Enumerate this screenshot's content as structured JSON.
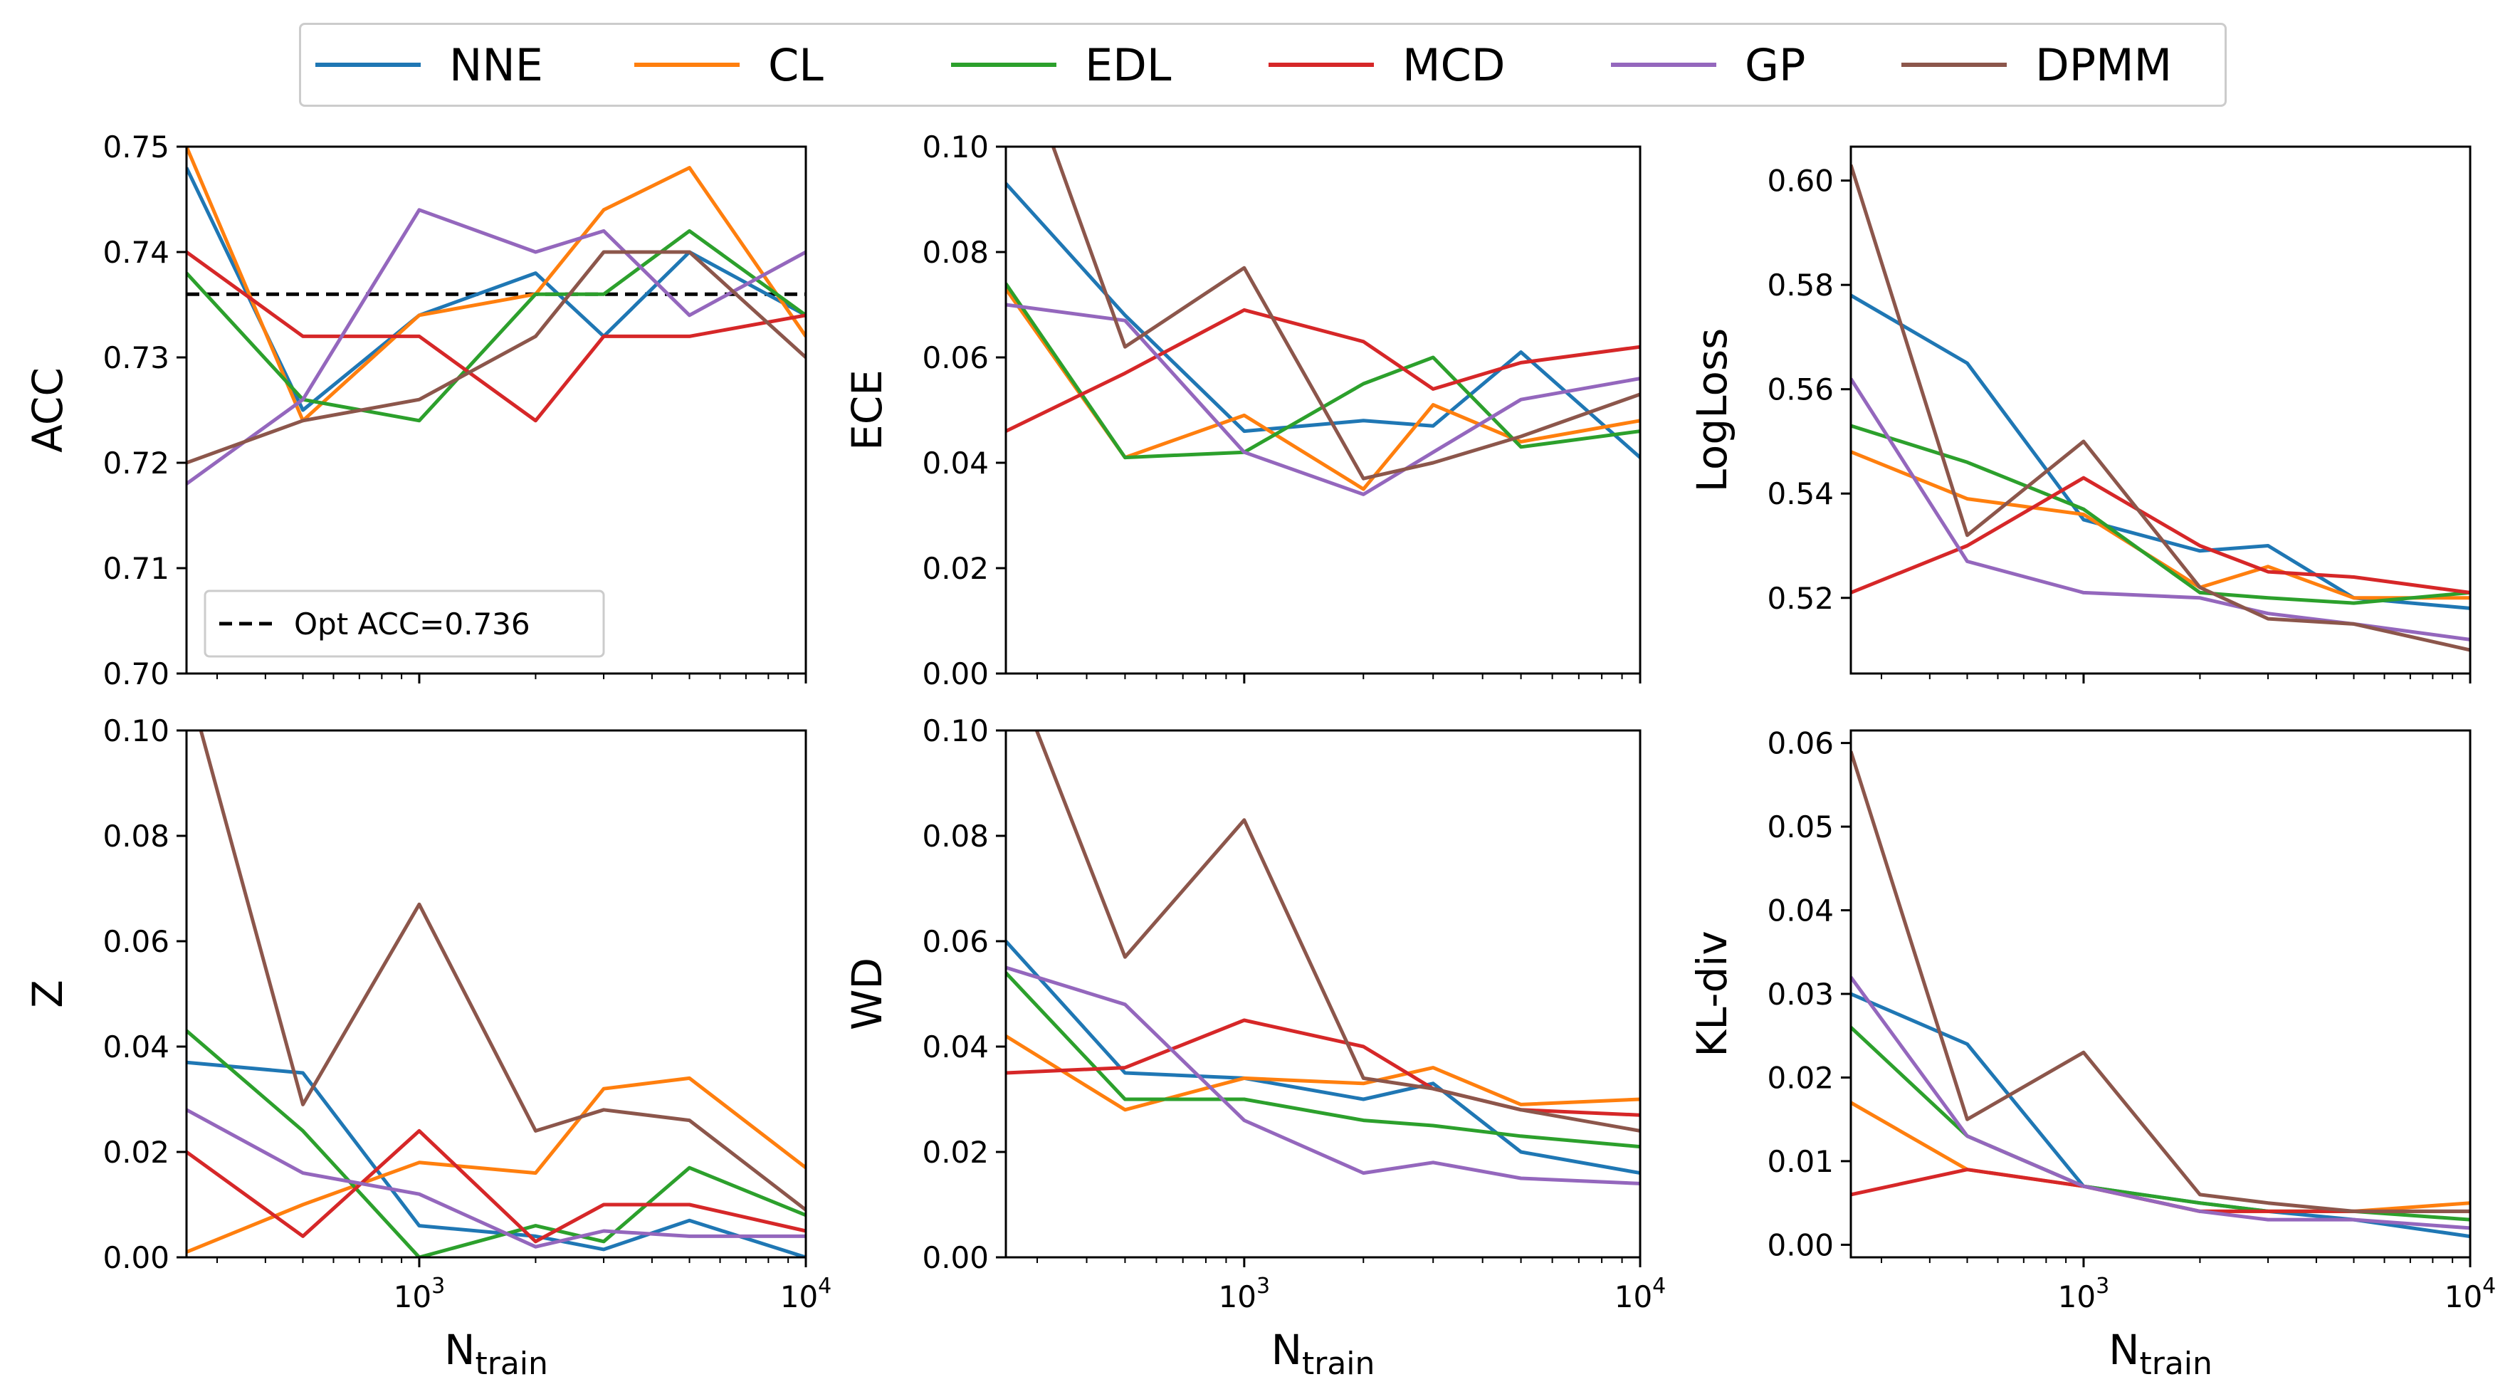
{
  "legend": {
    "items": [
      {
        "name": "NNE",
        "color": "#1f77b4"
      },
      {
        "name": "CL",
        "color": "#ff7f0e"
      },
      {
        "name": "EDL",
        "color": "#2ca02c"
      },
      {
        "name": "MCD",
        "color": "#d62728"
      },
      {
        "name": "GP",
        "color": "#9467bd"
      },
      {
        "name": "DPMM",
        "color": "#8c564b"
      }
    ]
  },
  "chart_data": [
    {
      "type": "line",
      "ylabel": "ACC",
      "xscale": "log",
      "xlim": [
        250,
        10000
      ],
      "ylim": [
        0.7,
        0.75
      ],
      "yticks": [
        "0.70",
        "0.71",
        "0.72",
        "0.73",
        "0.74",
        "0.75"
      ],
      "xtick_labels": [],
      "x": [
        250,
        500,
        1000,
        2000,
        3000,
        5000,
        10000
      ],
      "series": [
        {
          "name": "NNE",
          "values": [
            0.748,
            0.725,
            0.734,
            0.738,
            0.732,
            0.74,
            0.734
          ]
        },
        {
          "name": "CL",
          "values": [
            0.75,
            0.724,
            0.734,
            0.736,
            0.744,
            0.748,
            0.732
          ]
        },
        {
          "name": "EDL",
          "values": [
            0.738,
            0.726,
            0.724,
            0.736,
            0.736,
            0.742,
            0.734
          ]
        },
        {
          "name": "MCD",
          "values": [
            0.74,
            0.732,
            0.732,
            0.724,
            0.732,
            0.732,
            0.734
          ]
        },
        {
          "name": "GP",
          "values": [
            0.718,
            0.726,
            0.744,
            0.74,
            0.742,
            0.734,
            0.74
          ]
        },
        {
          "name": "DPMM",
          "values": [
            0.72,
            0.724,
            0.726,
            0.732,
            0.74,
            0.74,
            0.73
          ]
        }
      ],
      "reference_line": {
        "y": 0.736,
        "label": "Opt ACC=0.736"
      },
      "legend_position": "lower-left"
    },
    {
      "type": "line",
      "ylabel": "ECE",
      "xscale": "log",
      "xlim": [
        250,
        10000
      ],
      "ylim": [
        0.0,
        0.1
      ],
      "yticks": [
        "0.00",
        "0.02",
        "0.04",
        "0.06",
        "0.08",
        "0.10"
      ],
      "xtick_labels": [],
      "x": [
        250,
        500,
        1000,
        2000,
        3000,
        5000,
        10000
      ],
      "series": [
        {
          "name": "NNE",
          "values": [
            0.093,
            0.068,
            0.046,
            0.048,
            0.047,
            0.061,
            0.041
          ]
        },
        {
          "name": "CL",
          "values": [
            0.073,
            0.041,
            0.049,
            0.035,
            0.051,
            0.044,
            0.048
          ]
        },
        {
          "name": "EDL",
          "values": [
            0.074,
            0.041,
            0.042,
            0.055,
            0.06,
            0.043,
            0.046
          ]
        },
        {
          "name": "MCD",
          "values": [
            0.046,
            0.057,
            0.069,
            0.063,
            0.054,
            0.059,
            0.062
          ]
        },
        {
          "name": "GP",
          "values": [
            0.07,
            0.067,
            0.042,
            0.034,
            0.042,
            0.052,
            0.056
          ]
        },
        {
          "name": "DPMM",
          "values": [
            0.125,
            0.062,
            0.077,
            0.037,
            0.04,
            0.045,
            0.053
          ]
        }
      ]
    },
    {
      "type": "line",
      "ylabel": "LogLoss",
      "xscale": "log",
      "xlim": [
        250,
        10000
      ],
      "ylim": [
        0.5055,
        0.6065
      ],
      "yticks": [
        "0.52",
        "0.54",
        "0.56",
        "0.58",
        "0.60"
      ],
      "ytick_values": [
        0.52,
        0.54,
        0.56,
        0.58,
        0.6
      ],
      "xtick_labels": [],
      "x": [
        250,
        500,
        1000,
        2000,
        3000,
        5000,
        10000
      ],
      "series": [
        {
          "name": "NNE",
          "values": [
            0.578,
            0.565,
            0.535,
            0.529,
            0.53,
            0.52,
            0.518
          ]
        },
        {
          "name": "CL",
          "values": [
            0.548,
            0.539,
            0.536,
            0.522,
            0.526,
            0.52,
            0.52
          ]
        },
        {
          "name": "EDL",
          "values": [
            0.553,
            0.546,
            0.537,
            0.521,
            0.52,
            0.519,
            0.521
          ]
        },
        {
          "name": "MCD",
          "values": [
            0.521,
            0.53,
            0.543,
            0.53,
            0.525,
            0.524,
            0.521
          ]
        },
        {
          "name": "GP",
          "values": [
            0.562,
            0.527,
            0.521,
            0.52,
            0.517,
            0.515,
            0.512
          ]
        },
        {
          "name": "DPMM",
          "values": [
            0.603,
            0.532,
            0.55,
            0.522,
            0.516,
            0.515,
            0.51
          ]
        }
      ]
    },
    {
      "type": "line",
      "ylabel": "Z",
      "xlabel": "N_train",
      "xscale": "log",
      "xlim": [
        250,
        10000
      ],
      "ylim": [
        0.0,
        0.1
      ],
      "yticks": [
        "0.00",
        "0.02",
        "0.04",
        "0.06",
        "0.08",
        "0.10"
      ],
      "xtick_labels": [
        "10^3",
        "10^4"
      ],
      "x": [
        250,
        500,
        1000,
        2000,
        3000,
        5000,
        10000
      ],
      "series": [
        {
          "name": "NNE",
          "values": [
            0.037,
            0.035,
            0.006,
            0.004,
            0.0015,
            0.007,
            0.0
          ]
        },
        {
          "name": "CL",
          "values": [
            0.001,
            0.01,
            0.018,
            0.016,
            0.032,
            0.034,
            0.017
          ]
        },
        {
          "name": "EDL",
          "values": [
            0.043,
            0.024,
            0.0,
            0.006,
            0.003,
            0.017,
            0.008
          ]
        },
        {
          "name": "MCD",
          "values": [
            0.02,
            0.004,
            0.024,
            0.003,
            0.01,
            0.01,
            0.005
          ]
        },
        {
          "name": "GP",
          "values": [
            0.028,
            0.016,
            0.012,
            0.002,
            0.005,
            0.004,
            0.004
          ]
        },
        {
          "name": "DPMM",
          "values": [
            0.11,
            0.029,
            0.067,
            0.024,
            0.028,
            0.026,
            0.009
          ]
        }
      ]
    },
    {
      "type": "line",
      "ylabel": "WD",
      "xlabel": "N_train",
      "xscale": "log",
      "xlim": [
        250,
        10000
      ],
      "ylim": [
        0.0,
        0.1
      ],
      "yticks": [
        "0.00",
        "0.02",
        "0.04",
        "0.06",
        "0.08",
        "0.10"
      ],
      "xtick_labels": [
        "10^3",
        "10^4"
      ],
      "x": [
        250,
        500,
        1000,
        2000,
        3000,
        5000,
        10000
      ],
      "series": [
        {
          "name": "NNE",
          "values": [
            0.06,
            0.035,
            0.034,
            0.03,
            0.033,
            0.02,
            0.016
          ]
        },
        {
          "name": "CL",
          "values": [
            0.042,
            0.028,
            0.034,
            0.033,
            0.036,
            0.029,
            0.03
          ]
        },
        {
          "name": "EDL",
          "values": [
            0.054,
            0.03,
            0.03,
            0.026,
            0.025,
            0.023,
            0.021
          ]
        },
        {
          "name": "MCD",
          "values": [
            0.035,
            0.036,
            0.045,
            0.04,
            0.032,
            0.028,
            0.027
          ]
        },
        {
          "name": "GP",
          "values": [
            0.055,
            0.048,
            0.026,
            0.016,
            0.018,
            0.015,
            0.014
          ]
        },
        {
          "name": "DPMM",
          "values": [
            0.115,
            0.057,
            0.083,
            0.034,
            0.032,
            0.028,
            0.024
          ]
        }
      ]
    },
    {
      "type": "line",
      "ylabel": "KL-div",
      "xlabel": "N_train",
      "xscale": "log",
      "xlim": [
        250,
        10000
      ],
      "ylim": [
        -0.0015,
        0.0615
      ],
      "yticks": [
        "0.00",
        "0.01",
        "0.02",
        "0.03",
        "0.04",
        "0.05",
        "0.06"
      ],
      "ytick_values": [
        0.0,
        0.01,
        0.02,
        0.03,
        0.04,
        0.05,
        0.06
      ],
      "xtick_labels": [
        "10^3",
        "10^4"
      ],
      "x": [
        250,
        500,
        1000,
        2000,
        3000,
        5000,
        10000
      ],
      "series": [
        {
          "name": "NNE",
          "values": [
            0.03,
            0.024,
            0.007,
            0.005,
            0.004,
            0.003,
            0.001
          ]
        },
        {
          "name": "CL",
          "values": [
            0.017,
            0.009,
            0.007,
            0.004,
            0.004,
            0.004,
            0.005
          ]
        },
        {
          "name": "EDL",
          "values": [
            0.026,
            0.013,
            0.007,
            0.005,
            0.004,
            0.004,
            0.003
          ]
        },
        {
          "name": "MCD",
          "values": [
            0.006,
            0.009,
            0.007,
            0.004,
            0.004,
            0.004,
            0.004
          ]
        },
        {
          "name": "GP",
          "values": [
            0.032,
            0.013,
            0.007,
            0.004,
            0.003,
            0.003,
            0.002
          ]
        },
        {
          "name": "DPMM",
          "values": [
            0.059,
            0.015,
            0.023,
            0.006,
            0.005,
            0.004,
            0.004
          ]
        }
      ]
    }
  ]
}
